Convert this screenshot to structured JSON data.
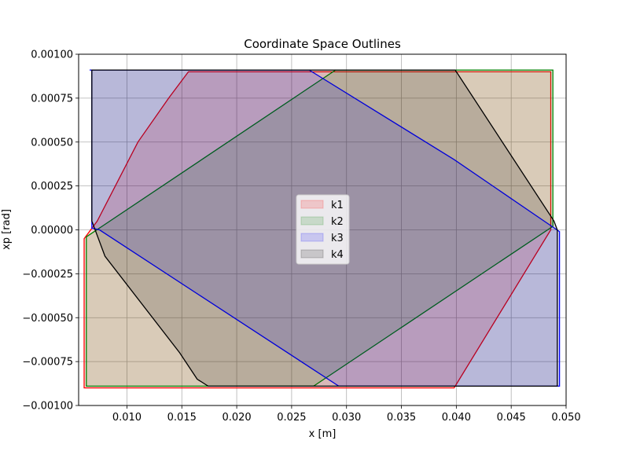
{
  "chart_data": {
    "type": "area",
    "title": "Coordinate Space Outlines",
    "xlabel": "x [m]",
    "ylabel": "xp [rad]",
    "xlim": [
      0.0056,
      0.05
    ],
    "ylim": [
      -0.001,
      0.001
    ],
    "xticks": [
      0.01,
      0.015,
      0.02,
      0.025,
      0.03,
      0.035,
      0.04,
      0.045,
      0.05
    ],
    "xtick_labels": [
      "0.010",
      "0.015",
      "0.020",
      "0.025",
      "0.030",
      "0.035",
      "0.040",
      "0.045",
      "0.050"
    ],
    "yticks": [
      -0.001,
      -0.00075,
      -0.0005,
      -0.00025,
      0.0,
      0.00025,
      0.0005,
      0.00075,
      0.001
    ],
    "ytick_labels": [
      "−0.00100",
      "−0.00075",
      "−0.00050",
      "−0.00025",
      "0.00000",
      "0.00025",
      "0.00050",
      "0.00075",
      "0.00100"
    ],
    "grid": true,
    "legend_position": "center",
    "series": [
      {
        "name": "k1",
        "color": "#ff0000",
        "points": [
          [
            0.0061,
            -0.0009
          ],
          [
            0.0061,
            -5e-05
          ],
          [
            0.0073,
            5e-05
          ],
          [
            0.011,
            0.0005
          ],
          [
            0.0138,
            0.00075
          ],
          [
            0.0156,
            0.0009
          ],
          [
            0.0486,
            0.0009
          ],
          [
            0.0486,
            0.0
          ],
          [
            0.0398,
            -0.0009
          ]
        ]
      },
      {
        "name": "k2",
        "color": "#008000",
        "points": [
          [
            0.0063,
            -0.00089
          ],
          [
            0.0063,
            -4e-05
          ],
          [
            0.029,
            0.00091
          ],
          [
            0.0488,
            0.00091
          ],
          [
            0.0488,
            2e-05
          ],
          [
            0.027,
            -0.00089
          ]
        ]
      },
      {
        "name": "k3",
        "color": "#0000ff",
        "points": [
          [
            0.0066,
            0.00091
          ],
          [
            0.0266,
            0.00091
          ],
          [
            0.0398,
            0.0004
          ],
          [
            0.0487,
            2e-05
          ],
          [
            0.0494,
            -1e-05
          ],
          [
            0.0494,
            -0.00089
          ],
          [
            0.0293,
            -0.00089
          ],
          [
            0.0075,
            0.0
          ],
          [
            0.0068,
            1e-05
          ],
          [
            0.0068,
            0.00091
          ]
        ]
      },
      {
        "name": "k4",
        "color": "#000000",
        "points": [
          [
            0.0068,
            0.00091
          ],
          [
            0.0399,
            0.00091
          ],
          [
            0.0489,
            5e-05
          ],
          [
            0.0492,
            0.0
          ],
          [
            0.0492,
            -0.00089
          ],
          [
            0.0174,
            -0.00089
          ],
          [
            0.0164,
            -0.00085
          ],
          [
            0.0148,
            -0.0007
          ],
          [
            0.008,
            -0.00015
          ],
          [
            0.0068,
            5e-05
          ]
        ]
      }
    ]
  }
}
